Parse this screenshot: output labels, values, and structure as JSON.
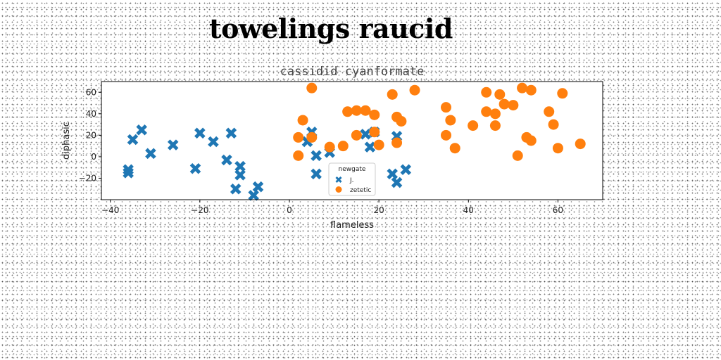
{
  "title": "towelings raucid",
  "chart_data": {
    "type": "scatter",
    "subtitle": "cassidid cyanformate",
    "xlabel": "flameless",
    "ylabel": "diphasic",
    "xlim": [
      -42,
      70
    ],
    "ylim": [
      -40,
      70
    ],
    "xticks": [
      -40,
      -20,
      0,
      20,
      40,
      60
    ],
    "yticks": [
      -20,
      0,
      20,
      40,
      60
    ],
    "grid": false,
    "legend": {
      "title": "newgate",
      "placement": "lower-center"
    },
    "series": [
      {
        "name": "J.",
        "marker": "x",
        "color": "#1f77b4",
        "points": [
          [
            -36,
            -12
          ],
          [
            -36,
            -15
          ],
          [
            -35,
            16
          ],
          [
            -33,
            25
          ],
          [
            -31,
            3
          ],
          [
            -26,
            11
          ],
          [
            -21,
            -11
          ],
          [
            -20,
            22
          ],
          [
            -17,
            14
          ],
          [
            -14,
            -3
          ],
          [
            -13,
            22
          ],
          [
            -12,
            -30
          ],
          [
            -11,
            -17
          ],
          [
            -11,
            -9
          ],
          [
            -8,
            -36
          ],
          [
            -7,
            -28
          ],
          [
            4,
            14
          ],
          [
            5,
            23
          ],
          [
            6,
            1
          ],
          [
            6,
            -16
          ],
          [
            9,
            4
          ],
          [
            17,
            21
          ],
          [
            18,
            9
          ],
          [
            19,
            23
          ],
          [
            23,
            -16
          ],
          [
            24,
            19
          ],
          [
            24,
            -24
          ],
          [
            26,
            -12
          ]
        ]
      },
      {
        "name": "zetetic",
        "marker": "o",
        "color": "#ff7f0e",
        "points": [
          [
            2,
            18
          ],
          [
            2,
            1
          ],
          [
            3,
            34
          ],
          [
            5,
            18
          ],
          [
            5,
            64
          ],
          [
            9,
            9
          ],
          [
            12,
            10
          ],
          [
            13,
            42
          ],
          [
            15,
            43
          ],
          [
            15,
            20
          ],
          [
            17,
            43
          ],
          [
            19,
            23
          ],
          [
            19,
            39
          ],
          [
            20,
            11
          ],
          [
            23,
            58
          ],
          [
            24,
            13
          ],
          [
            24,
            37
          ],
          [
            25,
            33
          ],
          [
            28,
            62
          ],
          [
            35,
            46
          ],
          [
            35,
            20
          ],
          [
            36,
            34
          ],
          [
            37,
            8
          ],
          [
            41,
            29
          ],
          [
            44,
            60
          ],
          [
            44,
            42
          ],
          [
            46,
            40
          ],
          [
            46,
            29
          ],
          [
            47,
            58
          ],
          [
            48,
            49
          ],
          [
            50,
            48
          ],
          [
            51,
            1
          ],
          [
            52,
            64
          ],
          [
            53,
            18
          ],
          [
            54,
            62
          ],
          [
            54,
            15
          ],
          [
            58,
            42
          ],
          [
            59,
            30
          ],
          [
            60,
            8
          ],
          [
            61,
            59
          ],
          [
            65,
            12
          ]
        ]
      }
    ]
  }
}
